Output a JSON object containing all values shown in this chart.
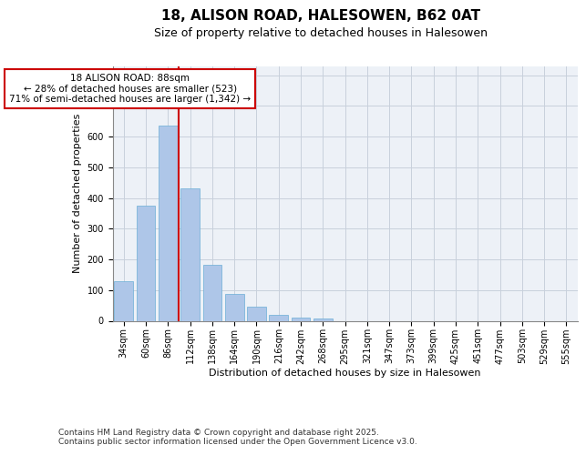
{
  "title1": "18, ALISON ROAD, HALESOWEN, B62 0AT",
  "title2": "Size of property relative to detached houses in Halesowen",
  "xlabel": "Distribution of detached houses by size in Halesowen",
  "ylabel": "Number of detached properties",
  "categories": [
    "34sqm",
    "60sqm",
    "86sqm",
    "112sqm",
    "138sqm",
    "164sqm",
    "190sqm",
    "216sqm",
    "242sqm",
    "268sqm",
    "295sqm",
    "321sqm",
    "347sqm",
    "373sqm",
    "399sqm",
    "425sqm",
    "451sqm",
    "477sqm",
    "503sqm",
    "529sqm",
    "555sqm"
  ],
  "values": [
    130,
    375,
    635,
    430,
    183,
    88,
    45,
    18,
    10,
    8,
    0,
    0,
    0,
    0,
    0,
    0,
    0,
    0,
    0,
    0,
    0
  ],
  "bar_color": "#aec6e8",
  "bar_edgecolor": "#6baed6",
  "bar_width": 0.85,
  "property_label": "18 ALISON ROAD: 88sqm",
  "pct_smaller_label": "← 28% of detached houses are smaller (523)",
  "pct_larger_label": "71% of semi-detached houses are larger (1,342) →",
  "annotation_box_edgecolor": "#cc0000",
  "vline_color": "#cc0000",
  "grid_color": "#c8d0dc",
  "background_color": "#edf1f7",
  "ylim": [
    0,
    830
  ],
  "yticks": [
    0,
    100,
    200,
    300,
    400,
    500,
    600,
    700,
    800
  ],
  "footer1": "Contains HM Land Registry data © Crown copyright and database right 2025.",
  "footer2": "Contains public sector information licensed under the Open Government Licence v3.0.",
  "title_fontsize": 11,
  "subtitle_fontsize": 9,
  "axis_label_fontsize": 8,
  "tick_fontsize": 7,
  "annotation_fontsize": 7.5,
  "footer_fontsize": 6.5
}
